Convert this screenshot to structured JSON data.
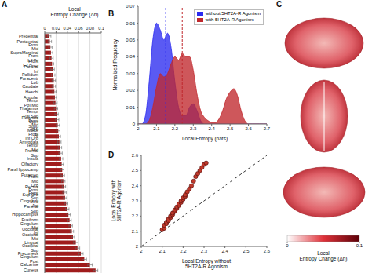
{
  "chart_data": [
    {
      "panel": "A",
      "type": "bar",
      "orientation": "horizontal",
      "x_label": "Local\nEntropy Change (Δh)",
      "color": "#a01c1c",
      "grid": true,
      "categories": [
        "Precentral",
        "Postcentral",
        "Front Mid",
        "SupraMarginal",
        "Front Inf Tri",
        "Front Inf Oper",
        "Parietal Inf",
        "Pallidum",
        "Paracentr Lob",
        "Caudate",
        "Heschl",
        "Angular",
        "Tempr Pol Mid",
        "Thalamus",
        "Tempr Pol Sup",
        "Rolandic Oper",
        "Front Mid Orb",
        "Supp Motor Ar",
        "Front Inf Orb",
        "Amygdala",
        "Tempr Mid",
        "Frontal Sup",
        "Insula",
        "Olfactory",
        "ParaHippocamp",
        "Putamen",
        "Front Mid Orb",
        "Rectus",
        "Front Sup Orb",
        "Front Sup Med",
        "Cingulum Ant",
        "Parietal Sup",
        "Hippocampus",
        "Fusiform",
        "Cingulum Mid",
        "Occipital Inf",
        "Occipital Mid",
        "Lingual",
        "Occipital Sup",
        "Precuneus",
        "Cingulum Post",
        "Calcarine",
        "Cuneus"
      ],
      "values": [
        0.008,
        0.009,
        0.01,
        0.011,
        0.012,
        0.013,
        0.014,
        0.015,
        0.016,
        0.016,
        0.017,
        0.018,
        0.019,
        0.02,
        0.021,
        0.022,
        0.023,
        0.024,
        0.025,
        0.026,
        0.027,
        0.028,
        0.029,
        0.03,
        0.031,
        0.032,
        0.033,
        0.034,
        0.035,
        0.036,
        0.038,
        0.04,
        0.042,
        0.044,
        0.046,
        0.048,
        0.05,
        0.055,
        0.058,
        0.064,
        0.07,
        0.08,
        0.09
      ],
      "errors": [
        0.003,
        0.003,
        0.003,
        0.003,
        0.003,
        0.003,
        0.003,
        0.003,
        0.003,
        0.003,
        0.003,
        0.003,
        0.003,
        0.003,
        0.003,
        0.003,
        0.003,
        0.003,
        0.003,
        0.003,
        0.003,
        0.003,
        0.003,
        0.003,
        0.003,
        0.003,
        0.003,
        0.003,
        0.003,
        0.003,
        0.003,
        0.003,
        0.003,
        0.003,
        0.003,
        0.003,
        0.003,
        0.004,
        0.004,
        0.004,
        0.004,
        0.004,
        0.004
      ],
      "xlim": [
        0,
        0.1
      ],
      "xticks": [
        0,
        0.02,
        0.04,
        0.06,
        0.08,
        0.1
      ]
    },
    {
      "panel": "B",
      "type": "area",
      "x_label": "Local Entropy (nats)",
      "y_label": "Normalized Frequency",
      "legend": "upper right",
      "x": [
        2,
        2.02,
        2.04,
        2.06,
        2.08,
        2.1,
        2.12,
        2.14,
        2.16,
        2.18,
        2.2,
        2.22,
        2.24,
        2.26,
        2.28,
        2.3,
        2.32,
        2.34,
        2.36,
        2.38,
        2.4,
        2.42,
        2.44,
        2.46,
        2.48,
        2.5,
        2.52,
        2.54,
        2.56,
        2.58,
        2.6,
        2.62,
        2.64,
        2.66,
        2.68,
        2.7
      ],
      "series": [
        {
          "name": "without 5HT2A-R Agonism",
          "color": "#2b2bf0",
          "mean": 2.15,
          "values": [
            0,
            0,
            0.005,
            0.025,
            0.05,
            0.06,
            0.056,
            0.05,
            0.054,
            0.045,
            0.025,
            0.01,
            0.005,
            0.005,
            0.01,
            0.012,
            0.008,
            0.002,
            0,
            0,
            0,
            0,
            0,
            0,
            0,
            0,
            0,
            0,
            0,
            0,
            0,
            0,
            0,
            0,
            0,
            0
          ]
        },
        {
          "name": "with 5HT2A-R Agonism",
          "color": "#c0282d",
          "mean": 2.24,
          "values": [
            0,
            0,
            0,
            0.002,
            0.01,
            0.022,
            0.03,
            0.028,
            0.03,
            0.036,
            0.04,
            0.038,
            0.042,
            0.04,
            0.04,
            0.032,
            0.018,
            0.008,
            0.004,
            0.002,
            0.001,
            0.001,
            0.003,
            0.008,
            0.015,
            0.019,
            0.021,
            0.017,
            0.008,
            0.002,
            0,
            0,
            0,
            0,
            0,
            0
          ]
        }
      ],
      "xlim": [
        2,
        2.7
      ],
      "xticks": [
        2,
        2.1,
        2.2,
        2.3,
        2.4,
        2.5,
        2.6,
        2.7
      ],
      "ylim": [
        0,
        0.07
      ],
      "yticks": [
        0,
        0.01,
        0.02,
        0.03,
        0.04,
        0.05,
        0.06,
        0.07
      ]
    },
    {
      "panel": "C",
      "type": "colorbar",
      "label": "Local\nEntropy Change (Δh)",
      "range": [
        0,
        0.1
      ],
      "ticks": [
        0,
        0.1
      ],
      "colors": [
        "#ffffff",
        "#e0323a",
        "#5c0008"
      ]
    },
    {
      "panel": "D",
      "type": "scatter",
      "x_label": "Local Entropy without\n5HT2A-R Agonism",
      "y_label": "Local Entropy with\n5HT2A-R Agonism",
      "series": [
        {
          "type": "scatter",
          "color": "#c0392b",
          "marker": "circle",
          "x": [
            2.1,
            2.11,
            2.11,
            2.12,
            2.12,
            2.13,
            2.13,
            2.14,
            2.14,
            2.15,
            2.15,
            2.16,
            2.16,
            2.17,
            2.17,
            2.18,
            2.18,
            2.19,
            2.19,
            2.2,
            2.2,
            2.21,
            2.21,
            2.22,
            2.23,
            2.24,
            2.25,
            2.26,
            2.27,
            2.28,
            2.29,
            2.3,
            2.31
          ],
          "values": [
            2.11,
            2.12,
            2.14,
            2.15,
            2.16,
            2.17,
            2.18,
            2.19,
            2.2,
            2.21,
            2.22,
            2.23,
            2.24,
            2.25,
            2.26,
            2.27,
            2.28,
            2.29,
            2.3,
            2.31,
            2.32,
            2.33,
            2.34,
            2.36,
            2.38,
            2.4,
            2.43,
            2.46,
            2.48,
            2.5,
            2.52,
            2.54,
            2.55
          ]
        },
        {
          "type": "line",
          "line_style": "dashed",
          "color": "#000000",
          "x": [
            2,
            2.6
          ],
          "values": [
            2,
            2.6
          ]
        }
      ],
      "xlim": [
        2,
        2.6
      ],
      "xticks": [
        2,
        2.1,
        2.2,
        2.3,
        2.4,
        2.5,
        2.6
      ],
      "ylim": [
        2,
        2.6
      ],
      "yticks": [
        2,
        2.1,
        2.2,
        2.3,
        2.4,
        2.5,
        2.6
      ]
    }
  ]
}
